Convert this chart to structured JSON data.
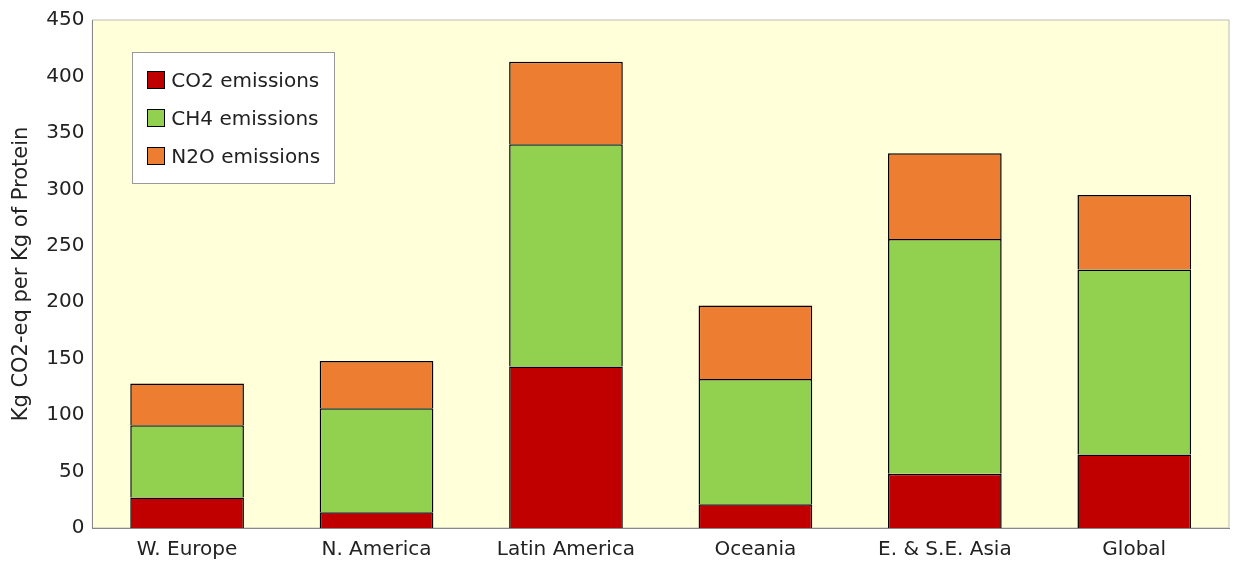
{
  "chart_data": {
    "type": "bar",
    "stacked": true,
    "ylabel": "Kg CO2-eq per Kg of Protein",
    "categories": [
      "W. Europe",
      "N. America",
      "Latin America",
      "Oceania",
      "E. & S.E. Asia",
      "Global"
    ],
    "series": [
      {
        "name": "CO2 emissions",
        "color": "#c00000",
        "values": [
          27,
          14,
          143,
          21,
          48,
          65
        ]
      },
      {
        "name": "CH4 emissions",
        "color": "#92d050",
        "values": [
          64,
          92,
          197,
          111,
          208,
          164
        ]
      },
      {
        "name": "N2O emissions",
        "color": "#ed7d31",
        "values": [
          37,
          42,
          73,
          65,
          76,
          66
        ]
      }
    ],
    "ylim": [
      0,
      450
    ],
    "yticks": [
      0,
      50,
      100,
      150,
      200,
      250,
      300,
      350,
      400,
      450
    ],
    "grid": false,
    "legend": "top left"
  }
}
